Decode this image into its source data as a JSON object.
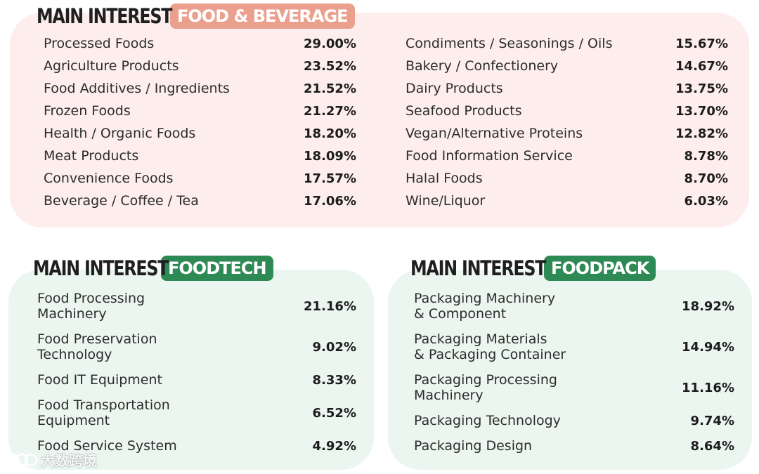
{
  "food_beverage": {
    "title": "MAIN INTEREST",
    "badge": "FOOD & BEVERAGE",
    "left": [
      {
        "label": "Processed Foods",
        "value": "29.00%"
      },
      {
        "label": "Agriculture Products",
        "value": "23.52%"
      },
      {
        "label": "Food Additives / Ingredients",
        "value": "21.52%"
      },
      {
        "label": "Frozen Foods",
        "value": "21.27%"
      },
      {
        "label": "Health / Organic Foods",
        "value": "18.20%"
      },
      {
        "label": "Meat Products",
        "value": "18.09%"
      },
      {
        "label": "Convenience Foods",
        "value": "17.57%"
      },
      {
        "label": "Beverage / Coffee / Tea",
        "value": "17.06%"
      }
    ],
    "right": [
      {
        "label": "Condiments / Seasonings / Oils",
        "value": "15.67%"
      },
      {
        "label": "Bakery / Confectionery",
        "value": "14.67%"
      },
      {
        "label": "Dairy Products",
        "value": "13.75%"
      },
      {
        "label": "Seafood Products",
        "value": "13.70%"
      },
      {
        "label": "Vegan/Alternative Proteins",
        "value": "12.82%"
      },
      {
        "label": "Food Information Service",
        "value": "8.78%"
      },
      {
        "label": "Halal Foods",
        "value": "8.70%"
      },
      {
        "label": "Wine/Liquor",
        "value": "6.03%"
      }
    ]
  },
  "foodtech": {
    "title": "MAIN INTEREST",
    "badge": "FOODTECH",
    "rows": [
      {
        "line1": "Food Processing",
        "line2": "Machinery",
        "value": "21.16%"
      },
      {
        "line1": "Food Preservation",
        "line2": "Technology",
        "value": "9.02%"
      },
      {
        "line1": "Food IT Equipment",
        "line2": "",
        "value": "8.33%"
      },
      {
        "line1": "Food Transportation",
        "line2": "Equipment",
        "value": "6.52%"
      },
      {
        "line1": "Food Service System",
        "line2": "",
        "value": "4.92%"
      }
    ]
  },
  "foodpack": {
    "title": "MAIN INTEREST",
    "badge": "FOODPACK",
    "rows": [
      {
        "line1": "Packaging Machinery",
        "line2": "& Component",
        "value": "18.92%"
      },
      {
        "line1": "Packaging Materials",
        "line2": "& Packaging Container",
        "value": "14.94%"
      },
      {
        "line1": "Packaging Processing",
        "line2": "Machinery",
        "value": "11.16%"
      },
      {
        "line1": "Packaging Technology",
        "line2": "",
        "value": "9.74%"
      },
      {
        "line1": "Packaging Design",
        "line2": "",
        "value": "8.64%"
      }
    ]
  },
  "watermark": {
    "text": "大数跨境"
  },
  "colors": {
    "fnb_panel": "#fdeeed",
    "fnb_badge": "#eaa08d",
    "green_panel": "#eaf6ef",
    "green_badge": "#2e8a54"
  }
}
